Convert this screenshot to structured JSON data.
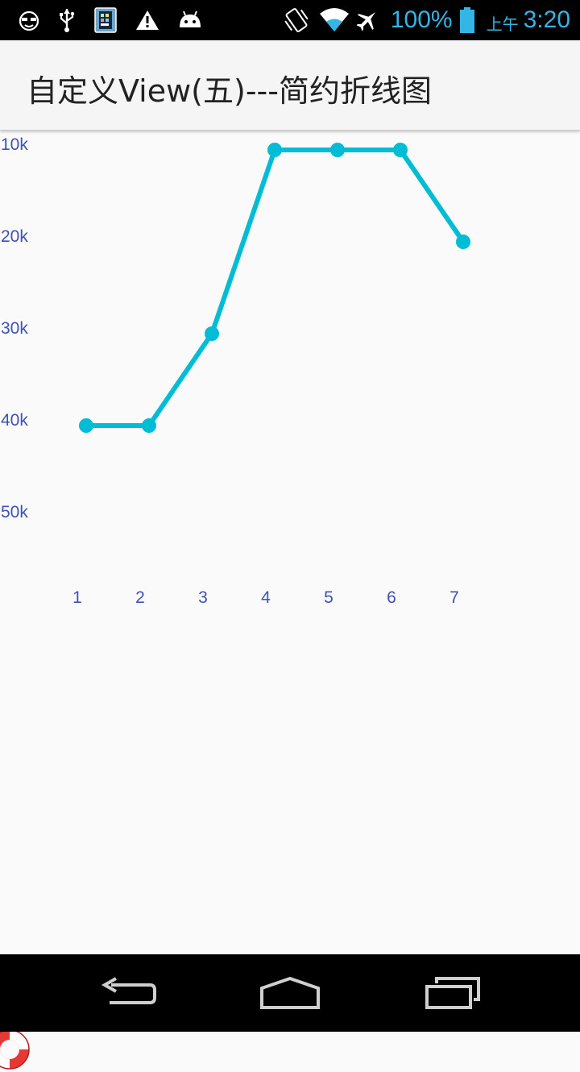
{
  "status_bar": {
    "battery_percent": "100%",
    "ampm": "上午",
    "time": "3:20",
    "accent_color": "#33b5e5",
    "left_icons": [
      "face-icon",
      "usb-icon",
      "sim-icon",
      "warning-icon",
      "android-icon"
    ],
    "right_icons": [
      "vibrate-icon",
      "wifi-icon",
      "airplane-icon",
      "battery-icon"
    ]
  },
  "action_bar": {
    "title": "自定义View(五)---简约折线图"
  },
  "chart_data": {
    "type": "line",
    "x": [
      "1",
      "2",
      "3",
      "4",
      "5",
      "6",
      "7"
    ],
    "y_tick_labels": [
      "10k",
      "20k",
      "30k",
      "40k",
      "50k"
    ],
    "y_axis_inverted": true,
    "series": [
      {
        "values": [
          "40k",
          "40k",
          "30k",
          "10k",
          "10k",
          "10k",
          "20k"
        ]
      }
    ],
    "line_color": "#00bcd4",
    "label_color": "#3f51b5",
    "grid": false
  },
  "nav_bar": {
    "buttons": [
      "back-button",
      "home-button",
      "recents-button"
    ]
  }
}
